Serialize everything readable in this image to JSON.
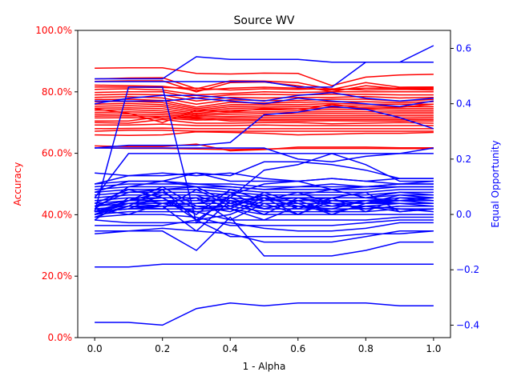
{
  "chart_data": {
    "type": "line",
    "title": "Source WV",
    "xlabel": "1 - Alpha",
    "ylabel_left": "Accuracy",
    "ylabel_right": "Equal Opportunity",
    "x": [
      0.0,
      0.1,
      0.2,
      0.3,
      0.4,
      0.5,
      0.6,
      0.7,
      0.8,
      0.9,
      1.0
    ],
    "xlim": [
      -0.05,
      1.05
    ],
    "ylim_left": [
      0.0,
      1.0
    ],
    "ylim_right": [
      -0.445,
      0.665
    ],
    "x_ticks": [
      "0.0",
      "0.2",
      "0.4",
      "0.6",
      "0.8",
      "1.0"
    ],
    "left_ticks": [
      "0.0%",
      "20.0%",
      "40.0%",
      "60.0%",
      "80.0%",
      "100.0%"
    ],
    "right_ticks": [
      "−0.4",
      "−0.2",
      "0.0",
      "0.2",
      "0.4",
      "0.6"
    ],
    "colors": {
      "accuracy": "#ff0000",
      "fairness": "#0000ff"
    },
    "grid": false,
    "accuracy_series": [
      {
        "values": [
          0.877,
          0.878,
          0.878,
          0.86,
          0.858,
          0.861,
          0.86,
          0.82,
          0.848,
          0.855,
          0.857
        ]
      },
      {
        "values": [
          0.842,
          0.845,
          0.846,
          0.81,
          0.836,
          0.835,
          0.83,
          0.808,
          0.83,
          0.815,
          0.816
        ]
      },
      {
        "values": [
          0.834,
          0.836,
          0.836,
          0.8,
          0.83,
          0.832,
          0.82,
          0.8,
          0.82,
          0.81,
          0.81
        ]
      },
      {
        "values": [
          0.822,
          0.82,
          0.818,
          0.805,
          0.812,
          0.815,
          0.812,
          0.806,
          0.812,
          0.812,
          0.812
        ]
      },
      {
        "values": [
          0.816,
          0.815,
          0.814,
          0.812,
          0.806,
          0.81,
          0.808,
          0.81,
          0.806,
          0.808,
          0.806
        ]
      },
      {
        "values": [
          0.808,
          0.81,
          0.806,
          0.79,
          0.795,
          0.8,
          0.798,
          0.8,
          0.8,
          0.8,
          0.8
        ]
      },
      {
        "values": [
          0.798,
          0.8,
          0.8,
          0.78,
          0.79,
          0.792,
          0.79,
          0.792,
          0.792,
          0.79,
          0.79
        ]
      },
      {
        "values": [
          0.79,
          0.792,
          0.79,
          0.77,
          0.782,
          0.78,
          0.782,
          0.782,
          0.785,
          0.78,
          0.782
        ]
      },
      {
        "values": [
          0.782,
          0.784,
          0.78,
          0.76,
          0.774,
          0.772,
          0.772,
          0.776,
          0.776,
          0.77,
          0.775
        ]
      },
      {
        "values": [
          0.775,
          0.776,
          0.772,
          0.75,
          0.766,
          0.764,
          0.766,
          0.768,
          0.768,
          0.765,
          0.768
        ]
      },
      {
        "values": [
          0.768,
          0.769,
          0.765,
          0.745,
          0.758,
          0.76,
          0.758,
          0.762,
          0.76,
          0.76,
          0.76
        ]
      },
      {
        "values": [
          0.76,
          0.762,
          0.758,
          0.74,
          0.752,
          0.754,
          0.752,
          0.755,
          0.754,
          0.752,
          0.752
        ]
      },
      {
        "values": [
          0.753,
          0.755,
          0.752,
          0.735,
          0.746,
          0.748,
          0.746,
          0.748,
          0.748,
          0.746,
          0.746
        ]
      },
      {
        "values": [
          0.747,
          0.748,
          0.745,
          0.73,
          0.74,
          0.742,
          0.74,
          0.742,
          0.742,
          0.74,
          0.74
        ]
      },
      {
        "values": [
          0.74,
          0.742,
          0.738,
          0.726,
          0.733,
          0.735,
          0.734,
          0.735,
          0.735,
          0.734,
          0.734
        ]
      },
      {
        "values": [
          0.733,
          0.735,
          0.732,
          0.722,
          0.727,
          0.729,
          0.728,
          0.729,
          0.728,
          0.728,
          0.728
        ]
      },
      {
        "values": [
          0.727,
          0.728,
          0.726,
          0.718,
          0.72,
          0.722,
          0.722,
          0.722,
          0.722,
          0.722,
          0.722
        ]
      },
      {
        "values": [
          0.721,
          0.722,
          0.72,
          0.712,
          0.715,
          0.716,
          0.716,
          0.716,
          0.716,
          0.715,
          0.716
        ]
      },
      {
        "values": [
          0.715,
          0.716,
          0.714,
          0.708,
          0.71,
          0.71,
          0.71,
          0.71,
          0.71,
          0.71,
          0.71
        ]
      },
      {
        "values": [
          0.745,
          0.73,
          0.7,
          0.74,
          0.735,
          0.745,
          0.74,
          0.76,
          0.745,
          0.75,
          0.76
        ]
      },
      {
        "values": [
          0.705,
          0.705,
          0.72,
          0.715,
          0.705,
          0.706,
          0.705,
          0.706,
          0.705,
          0.705,
          0.705
        ]
      },
      {
        "values": [
          0.7,
          0.698,
          0.71,
          0.698,
          0.698,
          0.7,
          0.7,
          0.696,
          0.698,
          0.7,
          0.698
        ]
      },
      {
        "values": [
          0.692,
          0.692,
          0.695,
          0.69,
          0.69,
          0.692,
          0.69,
          0.69,
          0.69,
          0.69,
          0.69
        ]
      },
      {
        "values": [
          0.68,
          0.681,
          0.682,
          0.68,
          0.68,
          0.68,
          0.68,
          0.68,
          0.68,
          0.68,
          0.68
        ]
      },
      {
        "values": [
          0.672,
          0.675,
          0.675,
          0.672,
          0.672,
          0.672,
          0.672,
          0.672,
          0.672,
          0.672,
          0.672
        ]
      },
      {
        "values": [
          0.66,
          0.658,
          0.66,
          0.67,
          0.668,
          0.665,
          0.66,
          0.662,
          0.665,
          0.665,
          0.668
        ]
      },
      {
        "values": [
          0.624,
          0.622,
          0.622,
          0.63,
          0.608,
          0.612,
          0.62,
          0.62,
          0.62,
          0.618,
          0.618
        ]
      },
      {
        "values": [
          0.618,
          0.616,
          0.616,
          0.614,
          0.612,
          0.614,
          0.616,
          0.616,
          0.616,
          0.615,
          0.615
        ]
      }
    ],
    "fairness_series": [
      {
        "values": [
          -0.39,
          -0.39,
          -0.4,
          -0.34,
          -0.32,
          -0.33,
          -0.32,
          -0.32,
          -0.32,
          -0.33,
          -0.33
        ]
      },
      {
        "values": [
          -0.19,
          -0.19,
          -0.18,
          -0.18,
          -0.18,
          -0.18,
          -0.18,
          -0.18,
          -0.18,
          -0.18,
          -0.18
        ]
      },
      {
        "values": [
          -0.06,
          -0.06,
          -0.06,
          -0.13,
          -0.01,
          -0.15,
          -0.15,
          -0.15,
          -0.13,
          -0.1,
          -0.1
        ]
      },
      {
        "values": [
          -0.07,
          -0.06,
          -0.05,
          -0.06,
          -0.07,
          -0.1,
          -0.1,
          -0.1,
          -0.08,
          -0.06,
          -0.06
        ]
      },
      {
        "values": [
          -0.04,
          -0.04,
          -0.04,
          -0.02,
          -0.08,
          -0.08,
          -0.08,
          -0.08,
          -0.07,
          -0.07,
          -0.06
        ]
      },
      {
        "values": [
          -0.02,
          -0.03,
          -0.03,
          -0.03,
          -0.03,
          -0.05,
          -0.06,
          -0.06,
          -0.05,
          -0.03,
          -0.03
        ]
      },
      {
        "values": [
          -0.01,
          0.0,
          0.0,
          -0.01,
          -0.04,
          -0.04,
          -0.04,
          -0.04,
          -0.03,
          -0.02,
          -0.02
        ]
      },
      {
        "values": [
          0.0,
          0.01,
          0.01,
          0.01,
          -0.02,
          -0.02,
          -0.02,
          -0.02,
          -0.02,
          -0.01,
          -0.01
        ]
      },
      {
        "values": [
          0.01,
          0.02,
          0.02,
          0.02,
          0.02,
          0.0,
          0.0,
          0.0,
          0.0,
          0.0,
          0.0
        ]
      },
      {
        "values": [
          0.02,
          0.03,
          0.03,
          0.03,
          0.03,
          0.01,
          0.01,
          0.01,
          0.01,
          0.02,
          0.02
        ]
      },
      {
        "values": [
          0.03,
          0.04,
          0.04,
          0.04,
          0.04,
          0.02,
          0.02,
          0.02,
          0.02,
          0.03,
          0.03
        ]
      },
      {
        "values": [
          0.04,
          0.05,
          0.05,
          0.05,
          0.05,
          0.03,
          0.03,
          0.03,
          0.03,
          0.04,
          0.04
        ]
      },
      {
        "values": [
          0.05,
          0.06,
          0.06,
          0.06,
          0.05,
          0.04,
          0.04,
          0.04,
          0.04,
          0.05,
          0.05
        ]
      },
      {
        "values": [
          0.06,
          0.07,
          0.07,
          0.07,
          0.06,
          0.05,
          0.05,
          0.05,
          0.05,
          0.06,
          0.06
        ]
      },
      {
        "values": [
          0.07,
          0.08,
          0.08,
          0.08,
          0.07,
          0.06,
          0.06,
          0.06,
          0.06,
          0.07,
          0.07
        ]
      },
      {
        "values": [
          0.08,
          0.09,
          0.09,
          0.09,
          0.08,
          0.07,
          0.07,
          0.07,
          0.07,
          0.08,
          0.08
        ]
      },
      {
        "values": [
          0.09,
          0.1,
          0.1,
          0.1,
          0.09,
          0.08,
          0.08,
          0.08,
          0.08,
          0.09,
          0.09
        ]
      },
      {
        "values": [
          0.1,
          0.11,
          0.11,
          0.11,
          0.1,
          0.09,
          0.09,
          0.09,
          0.09,
          0.1,
          0.1
        ]
      },
      {
        "values": [
          0.11,
          0.12,
          0.12,
          0.11,
          0.11,
          0.1,
          0.1,
          0.1,
          0.1,
          0.11,
          0.11
        ]
      },
      {
        "values": [
          0.02,
          0.1,
          0.12,
          0.1,
          0.1,
          0.09,
          0.1,
          0.11,
          0.1,
          0.1,
          0.1
        ]
      },
      {
        "values": [
          0.04,
          0.09,
          0.06,
          -0.02,
          0.0,
          0.05,
          0.06,
          0.04,
          0.04,
          0.05,
          0.05
        ]
      },
      {
        "values": [
          0.01,
          0.05,
          0.1,
          0.03,
          0.01,
          0.06,
          0.0,
          0.05,
          0.04,
          0.04,
          0.04
        ]
      },
      {
        "values": [
          0.0,
          0.03,
          0.09,
          -0.02,
          0.06,
          0.02,
          0.05,
          0.01,
          0.03,
          0.01,
          0.02
        ]
      },
      {
        "values": [
          0.03,
          0.05,
          0.08,
          0.02,
          0.03,
          0.07,
          0.02,
          0.06,
          0.01,
          0.06,
          0.05
        ]
      },
      {
        "values": [
          0.01,
          0.02,
          0.07,
          0.07,
          0.02,
          -0.02,
          0.03,
          0.02,
          0.05,
          0.05,
          0.06
        ]
      },
      {
        "values": [
          0.0,
          0.05,
          0.06,
          0.0,
          0.09,
          0.05,
          0.08,
          0.04,
          0.02,
          0.03,
          0.03
        ]
      },
      {
        "values": [
          0.02,
          0.0,
          0.04,
          0.06,
          -0.02,
          0.04,
          0.0,
          0.06,
          0.08,
          0.01,
          0.02
        ]
      },
      {
        "values": [
          0.01,
          0.04,
          0.03,
          -0.06,
          0.05,
          0.0,
          0.06,
          0.03,
          0.05,
          0.04,
          0.03
        ]
      },
      {
        "values": [
          -0.02,
          0.06,
          0.04,
          0.01,
          0.02,
          0.08,
          0.04,
          0.0,
          0.04,
          0.07,
          0.06
        ]
      },
      {
        "values": [
          0.03,
          0.08,
          0.09,
          0.1,
          0.04,
          0.07,
          0.07,
          0.09,
          0.06,
          0.08,
          0.07
        ]
      },
      {
        "values": [
          0.0,
          0.04,
          0.05,
          0.05,
          0.08,
          0.02,
          0.05,
          0.06,
          0.06,
          0.05,
          0.04
        ]
      },
      {
        "values": [
          -0.01,
          0.03,
          0.02,
          0.09,
          0.03,
          0.06,
          0.03,
          0.01,
          0.03,
          0.02,
          0.01
        ]
      },
      {
        "values": [
          0.08,
          0.12,
          0.12,
          0.15,
          0.14,
          0.19,
          0.19,
          0.18,
          0.16,
          0.13,
          0.13
        ]
      },
      {
        "values": [
          0.01,
          0.02,
          0.03,
          0.04,
          0.06,
          0.16,
          0.18,
          0.22,
          0.18,
          0.12,
          0.12
        ]
      },
      {
        "values": [
          0.11,
          0.14,
          0.14,
          0.15,
          0.12,
          0.12,
          0.12,
          0.13,
          0.12,
          0.13,
          0.13
        ]
      },
      {
        "values": [
          0.15,
          0.14,
          0.15,
          0.14,
          0.15,
          0.13,
          0.12,
          0.09,
          0.1,
          0.11,
          0.12
        ]
      },
      {
        "values": [
          0.01,
          0.46,
          0.46,
          -0.03,
          0.07,
          0.11,
          0.12,
          0.13,
          0.12,
          0.11,
          0.11
        ]
      },
      {
        "values": [
          0.24,
          0.25,
          0.25,
          0.25,
          0.26,
          0.36,
          0.37,
          0.39,
          0.38,
          0.35,
          0.31
        ]
      },
      {
        "values": [
          0.24,
          0.24,
          0.24,
          0.24,
          0.24,
          0.24,
          0.2,
          0.19,
          0.21,
          0.22,
          0.24
        ]
      },
      {
        "values": [
          0.41,
          0.41,
          0.41,
          0.42,
          0.41,
          0.4,
          0.42,
          0.41,
          0.4,
          0.39,
          0.41
        ]
      },
      {
        "values": [
          0.4,
          0.42,
          0.43,
          0.43,
          0.42,
          0.41,
          0.43,
          0.44,
          0.42,
          0.41,
          0.42
        ]
      },
      {
        "values": [
          0.49,
          0.49,
          0.49,
          0.57,
          0.56,
          0.56,
          0.56,
          0.55,
          0.55,
          0.55,
          0.55
        ]
      },
      {
        "values": [
          0.48,
          0.48,
          0.48,
          0.48,
          0.48,
          0.48,
          0.46,
          0.46,
          0.55,
          0.55,
          0.61
        ]
      },
      {
        "values": [
          0.06,
          0.22,
          0.22,
          0.22,
          0.22,
          0.22,
          0.22,
          0.22,
          0.22,
          0.22,
          0.22
        ]
      }
    ]
  }
}
